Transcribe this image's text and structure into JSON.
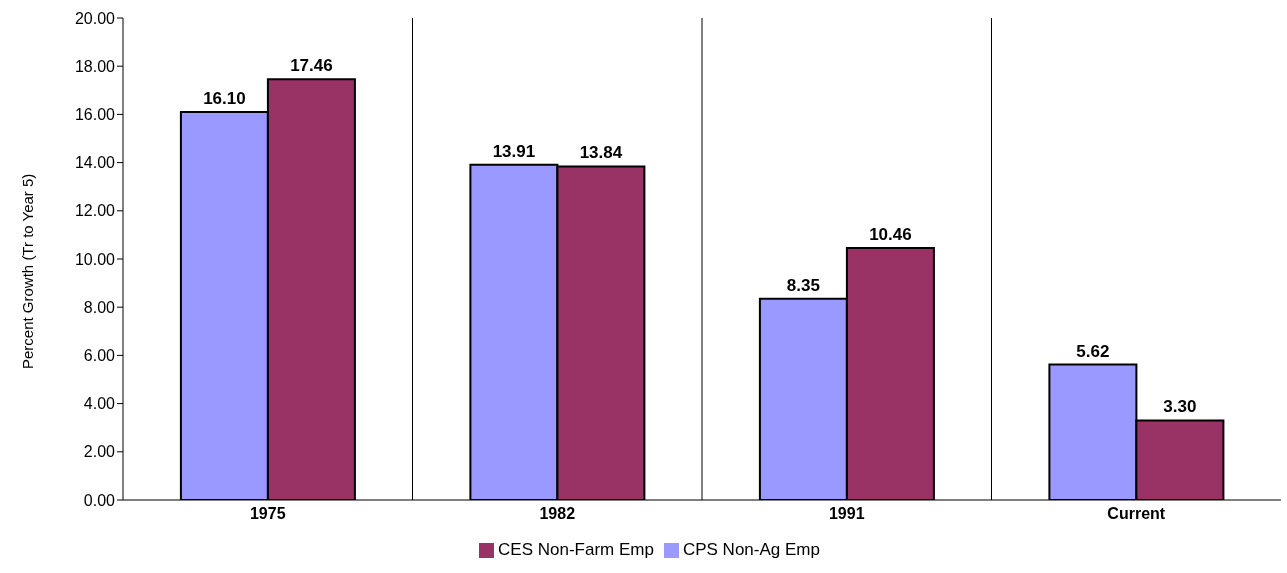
{
  "chart_data": {
    "type": "bar",
    "ylabel": "Percent Growth (Tr to Year 5)",
    "categories": [
      "1975",
      "1982",
      "1991",
      "Current"
    ],
    "series": [
      {
        "name": "CPS Non-Ag Emp",
        "color": "#9999ff",
        "values": [
          16.1,
          13.91,
          8.35,
          5.62
        ],
        "value_labels": [
          "16.10",
          "13.91",
          "8.35",
          "5.62"
        ]
      },
      {
        "name": "CES Non-Farm Emp",
        "color": "#993366",
        "values": [
          17.46,
          13.84,
          10.46,
          3.3
        ],
        "value_labels": [
          "17.46",
          "13.84",
          "10.46",
          "3.30"
        ]
      }
    ],
    "ylim": [
      0,
      20
    ],
    "yticks": [
      {
        "value": 0,
        "label": "0.00"
      },
      {
        "value": 2,
        "label": "2.00"
      },
      {
        "value": 4,
        "label": "4.00"
      },
      {
        "value": 6,
        "label": "6.00"
      },
      {
        "value": 8,
        "label": "8.00"
      },
      {
        "value": 10,
        "label": "10.00"
      },
      {
        "value": 12,
        "label": "12.00"
      },
      {
        "value": 14,
        "label": "14.00"
      },
      {
        "value": 16,
        "label": "16.00"
      },
      {
        "value": 18,
        "label": "18.00"
      },
      {
        "value": 20,
        "label": "20.00"
      }
    ],
    "grid": "x",
    "legend": "bottom"
  }
}
